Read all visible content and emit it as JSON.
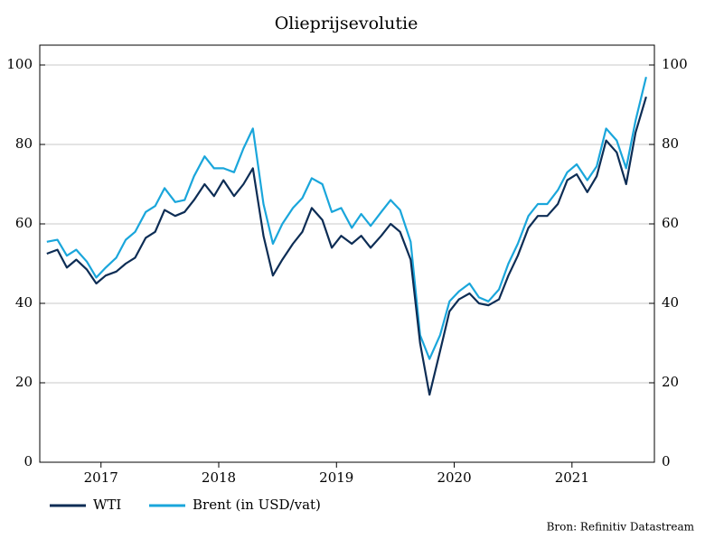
{
  "chart_data": {
    "type": "line",
    "title": "Olieprijsevolutie",
    "source": "Bron: Refinitiv Datastream",
    "x": [
      2017.04,
      2017.13,
      2017.21,
      2017.29,
      2017.38,
      2017.46,
      2017.54,
      2017.63,
      2017.71,
      2017.79,
      2017.88,
      2017.96,
      2018.04,
      2018.13,
      2018.21,
      2018.29,
      2018.38,
      2018.46,
      2018.54,
      2018.63,
      2018.71,
      2018.79,
      2018.88,
      2018.96,
      2019.04,
      2019.13,
      2019.21,
      2019.29,
      2019.38,
      2019.46,
      2019.54,
      2019.63,
      2019.71,
      2019.79,
      2019.88,
      2019.96,
      2020.04,
      2020.13,
      2020.21,
      2020.29,
      2020.38,
      2020.46,
      2020.54,
      2020.63,
      2020.71,
      2020.79,
      2020.88,
      2020.96,
      2021.04,
      2021.13,
      2021.21,
      2021.29,
      2021.38,
      2021.46,
      2021.54,
      2021.63,
      2021.71,
      2021.79,
      2021.88,
      2021.96,
      2022.04,
      2022.13
    ],
    "series": [
      {
        "name": "WTI",
        "color": "#0d2d55",
        "values": [
          52.5,
          53.5,
          49,
          51,
          48.5,
          45,
          47,
          48,
          50,
          51.5,
          56.5,
          58,
          63.5,
          62,
          63,
          66,
          70,
          67,
          71,
          67,
          70,
          74,
          57,
          47,
          51,
          55,
          58,
          64,
          61,
          54,
          57,
          55,
          57,
          54,
          57,
          60,
          58,
          51,
          30,
          17,
          28,
          38,
          41,
          42.5,
          40,
          39.5,
          41,
          47,
          52,
          59,
          62,
          62,
          65,
          71,
          72.5,
          68,
          72,
          81,
          78,
          70,
          83,
          92
        ]
      },
      {
        "name": "Brent (in USD/vat)",
        "color": "#1aa6db",
        "values": [
          55.5,
          56,
          52,
          53.5,
          50.5,
          46.5,
          49,
          51.5,
          56,
          58,
          63,
          64.5,
          69,
          65.5,
          66,
          72,
          77,
          74,
          74,
          73,
          79,
          84,
          65,
          55,
          60,
          64,
          66.5,
          71.5,
          70,
          63,
          64,
          59,
          62.5,
          59.5,
          63,
          66,
          63.5,
          55.5,
          32,
          26,
          32,
          40.5,
          43,
          45,
          41.5,
          40.5,
          43.5,
          50,
          55,
          62,
          65,
          65,
          68.5,
          73,
          75,
          71,
          74.5,
          84,
          81,
          74,
          86,
          97
        ]
      }
    ],
    "xlim": [
      2016.98,
      2022.2
    ],
    "xticks": [
      {
        "value": 2017.5,
        "label": "2017"
      },
      {
        "value": 2018.5,
        "label": "2018"
      },
      {
        "value": 2019.5,
        "label": "2019"
      },
      {
        "value": 2020.5,
        "label": "2020"
      },
      {
        "value": 2021.5,
        "label": "2021"
      }
    ],
    "ylim": [
      0,
      105
    ],
    "yticks": [
      0,
      20,
      40,
      60,
      80,
      100
    ],
    "y2lim": [
      0,
      105
    ],
    "y2ticks": [
      0,
      20,
      40,
      60,
      80,
      100
    ],
    "grid": true
  }
}
